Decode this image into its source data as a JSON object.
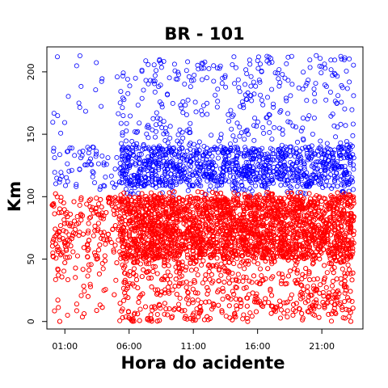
{
  "chart_data": {
    "type": "scatter",
    "title": "BR - 101",
    "xlabel": "Hora do acidente",
    "ylabel": "Km",
    "x_ticks": [
      "01:00",
      "06:00",
      "11:00",
      "16:00",
      "21:00"
    ],
    "x_tick_hours": [
      1,
      6,
      11,
      16,
      21
    ],
    "y_ticks": [
      "0",
      "50",
      "100",
      "150",
      "200"
    ],
    "y_tick_values": [
      0,
      50,
      100,
      150,
      200
    ],
    "xlim": [
      -0.4,
      24.2
    ],
    "ylim": [
      -6,
      220
    ],
    "grid": false,
    "legend": "none",
    "marker": "open-circle",
    "series": [
      {
        "color": "#0000ff",
        "x_range": [
          0,
          23.5
        ],
        "y_range": [
          100,
          213
        ],
        "approx_points": 1800,
        "sparse_before_hour": 5.3,
        "dense_band_y": [
          108,
          140
        ]
      },
      {
        "color": "#ff0000",
        "x_range": [
          0,
          23.5
        ],
        "y_range": [
          0,
          104
        ],
        "approx_points": 9000,
        "sparse_before_hour": 5.3,
        "dense_band_y": [
          50,
          100
        ]
      }
    ]
  }
}
